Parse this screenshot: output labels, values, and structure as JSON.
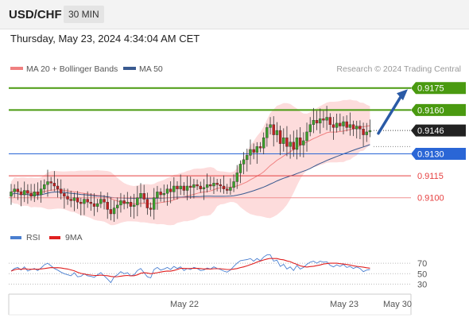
{
  "header": {
    "symbol": "USD/CHF",
    "interval": "30 MIN",
    "datetime": "Thursday, May 23, 2024 4:34:04 AM CET"
  },
  "legend": {
    "ma20_label": "MA 20 + Bollinger Bands",
    "ma50_label": "MA 50",
    "copyright": "Research © 2024 Trading Central",
    "rsi_label": "RSI",
    "ma9_label": "9MA"
  },
  "colors": {
    "resistance": "#4a9a10",
    "pivot": "#2a66d6",
    "support": "#e64040",
    "support_light": "#f09090",
    "ma20": "#f08080",
    "band_fill": "#fddcdc",
    "ma50": "#3a5a90",
    "candle_up": "#3aa02a",
    "candle_down": "#c22020",
    "forecast_arrow": "#2a5aa6",
    "rsi": "#4a7fd0",
    "rsi_ma": "#e02020"
  },
  "levels": [
    {
      "kind": "resistance",
      "value": "0.9175"
    },
    {
      "kind": "resistance",
      "value": "0.9160"
    },
    {
      "kind": "current",
      "value": "0.9146"
    },
    {
      "kind": "pivot",
      "value": "0.9130"
    },
    {
      "kind": "support",
      "value": "0.9115"
    },
    {
      "kind": "support",
      "value": "0.9100"
    }
  ],
  "rsi_axis": {
    "labels": [
      "70",
      "50",
      "30"
    ]
  },
  "x_axis": {
    "labels": [
      "May 22",
      "May 23",
      "May 30"
    ]
  },
  "chart_data": [
    {
      "type": "candlestick",
      "title": "USD/CHF",
      "ylim": [
        0.9083,
        0.9183
      ],
      "current_price": 0.9146,
      "levels": {
        "resistance": [
          0.9175,
          0.916
        ],
        "pivot": 0.913,
        "support": [
          0.9115,
          0.91
        ]
      },
      "close": [
        0.9104,
        0.9106,
        0.9104,
        0.9102,
        0.9105,
        0.9103,
        0.9101,
        0.9104,
        0.9102,
        0.9106,
        0.9109,
        0.9111,
        0.911,
        0.9108,
        0.9106,
        0.9103,
        0.9101,
        0.9099,
        0.9098,
        0.91,
        0.9097,
        0.9096,
        0.9099,
        0.9097,
        0.9096,
        0.9094,
        0.9096,
        0.9099,
        0.9097,
        0.9092,
        0.9089,
        0.9093,
        0.9095,
        0.9098,
        0.9096,
        0.9097,
        0.9094,
        0.9095,
        0.91,
        0.9103,
        0.9099,
        0.9093,
        0.9092,
        0.91,
        0.9104,
        0.9102,
        0.9103,
        0.9106,
        0.9104,
        0.9108,
        0.9106,
        0.9108,
        0.9105,
        0.9108,
        0.9107,
        0.9109,
        0.9108,
        0.9106,
        0.9107,
        0.9109,
        0.9108,
        0.911,
        0.9109,
        0.9108,
        0.9106,
        0.9105,
        0.9107,
        0.9111,
        0.9117,
        0.9123,
        0.9126,
        0.9129,
        0.9133,
        0.9131,
        0.9135,
        0.9134,
        0.9141,
        0.9148,
        0.915,
        0.9143,
        0.9146,
        0.9137,
        0.9141,
        0.9135,
        0.9138,
        0.9133,
        0.9141,
        0.9136,
        0.9139,
        0.9145,
        0.915,
        0.9153,
        0.9151,
        0.9154,
        0.9153,
        0.9155,
        0.915,
        0.9148,
        0.9151,
        0.9149,
        0.9152,
        0.9148,
        0.915,
        0.9147,
        0.9149,
        0.9147,
        0.9143,
        0.9145,
        0.9146
      ],
      "series": [
        {
          "name": "MA 20"
        },
        {
          "name": "MA 50"
        }
      ]
    },
    {
      "type": "line",
      "series": [
        {
          "name": "RSI",
          "values": [
            55,
            60,
            62,
            57,
            63,
            55,
            58,
            60,
            56,
            61,
            67,
            70,
            65,
            60,
            57,
            53,
            50,
            48,
            46,
            52,
            44,
            45,
            50,
            46,
            45,
            43,
            48,
            52,
            46,
            40,
            33,
            44,
            48,
            54,
            50,
            52,
            46,
            48,
            56,
            60,
            52,
            44,
            42,
            58,
            62,
            57,
            59,
            62,
            58,
            64,
            60,
            63,
            56,
            60,
            58,
            62,
            60,
            56,
            57,
            61,
            59,
            63,
            60,
            58,
            55,
            53,
            57,
            64,
            70,
            75,
            76,
            77,
            79,
            74,
            79,
            75,
            82,
            86,
            86,
            74,
            76,
            64,
            68,
            59,
            63,
            56,
            66,
            59,
            62,
            68,
            72,
            74,
            70,
            74,
            72,
            73,
            66,
            63,
            67,
            64,
            68,
            62,
            64,
            60,
            63,
            60,
            54,
            57,
            58
          ]
        },
        {
          "name": "9MA"
        }
      ],
      "ylim": [
        20,
        90
      ]
    }
  ]
}
